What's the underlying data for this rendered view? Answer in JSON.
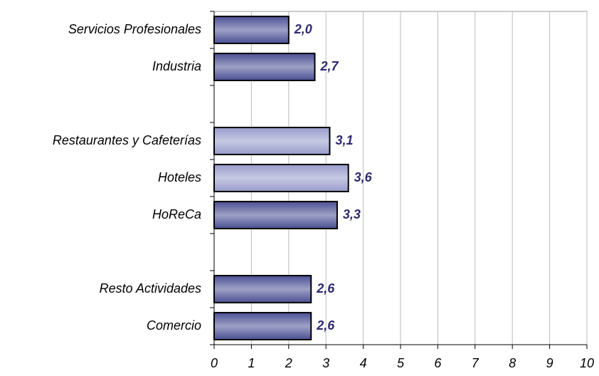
{
  "chart_data": {
    "type": "barh",
    "categories": [
      "Servicios  Profesionales",
      "Industria",
      null,
      "Restaurantes y Cafeterías",
      "Hoteles",
      "HoReCa",
      null,
      "Resto Actividades",
      "Comercio"
    ],
    "values": [
      2.0,
      2.7,
      null,
      3.1,
      3.6,
      3.3,
      null,
      2.6,
      2.6
    ],
    "value_labels": [
      "2,0",
      "2,7",
      null,
      "3,1",
      "3,6",
      "3,3",
      null,
      "2,6",
      "2,6"
    ],
    "colors": [
      "#4f5496",
      "#4f5496",
      null,
      "#9a9ecb",
      "#9a9ecb",
      "#4f5496",
      null,
      "#4f5496",
      "#4f5496"
    ],
    "xlim": [
      0,
      10
    ],
    "xticks": [
      0,
      1,
      2,
      3,
      4,
      5,
      6,
      7,
      8,
      9,
      10
    ],
    "grid": true
  }
}
